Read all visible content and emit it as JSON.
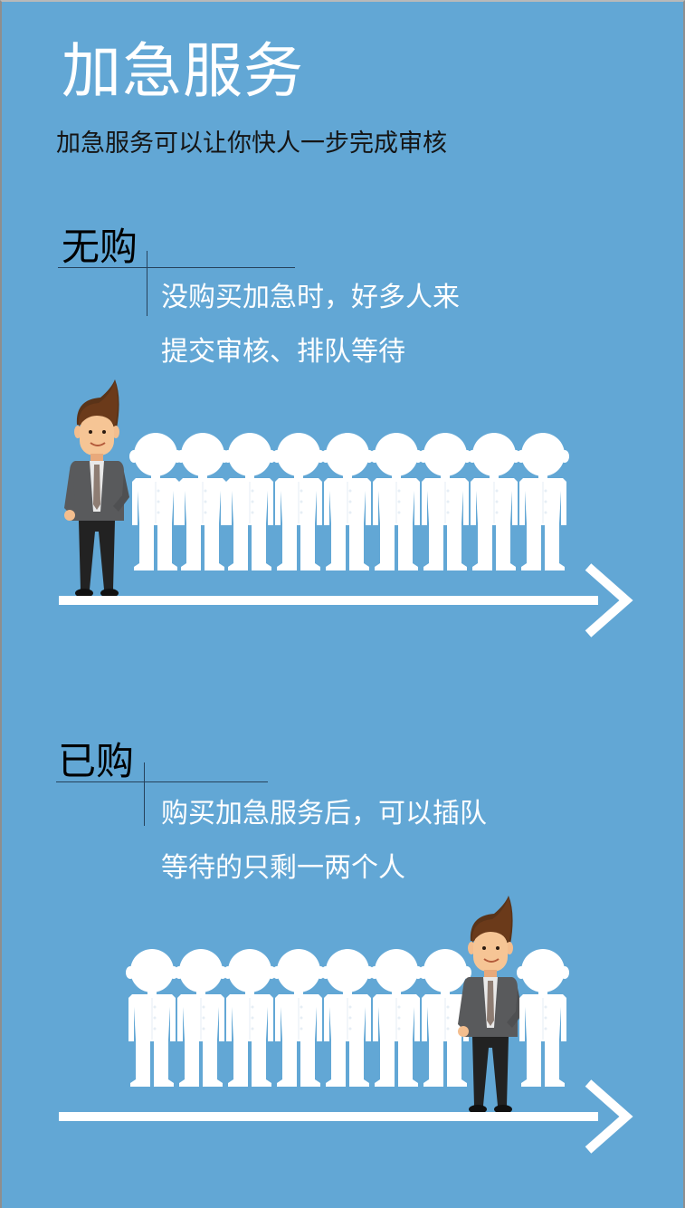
{
  "title": "加急服务",
  "subtitle": "加急服务可以让你快人一步完成审核",
  "sections": [
    {
      "label": "无购",
      "desc_line1": "没购买加急时，好多人来",
      "desc_line2": "提交审核、排队等待"
    },
    {
      "label": "已购",
      "desc_line1": "购买加急服务后，可以插队",
      "desc_line2": "等待的只剩一两个人"
    }
  ],
  "colors": {
    "background": "#62a7d5",
    "text_light": "#ffffff",
    "text_dark": "#000000"
  }
}
